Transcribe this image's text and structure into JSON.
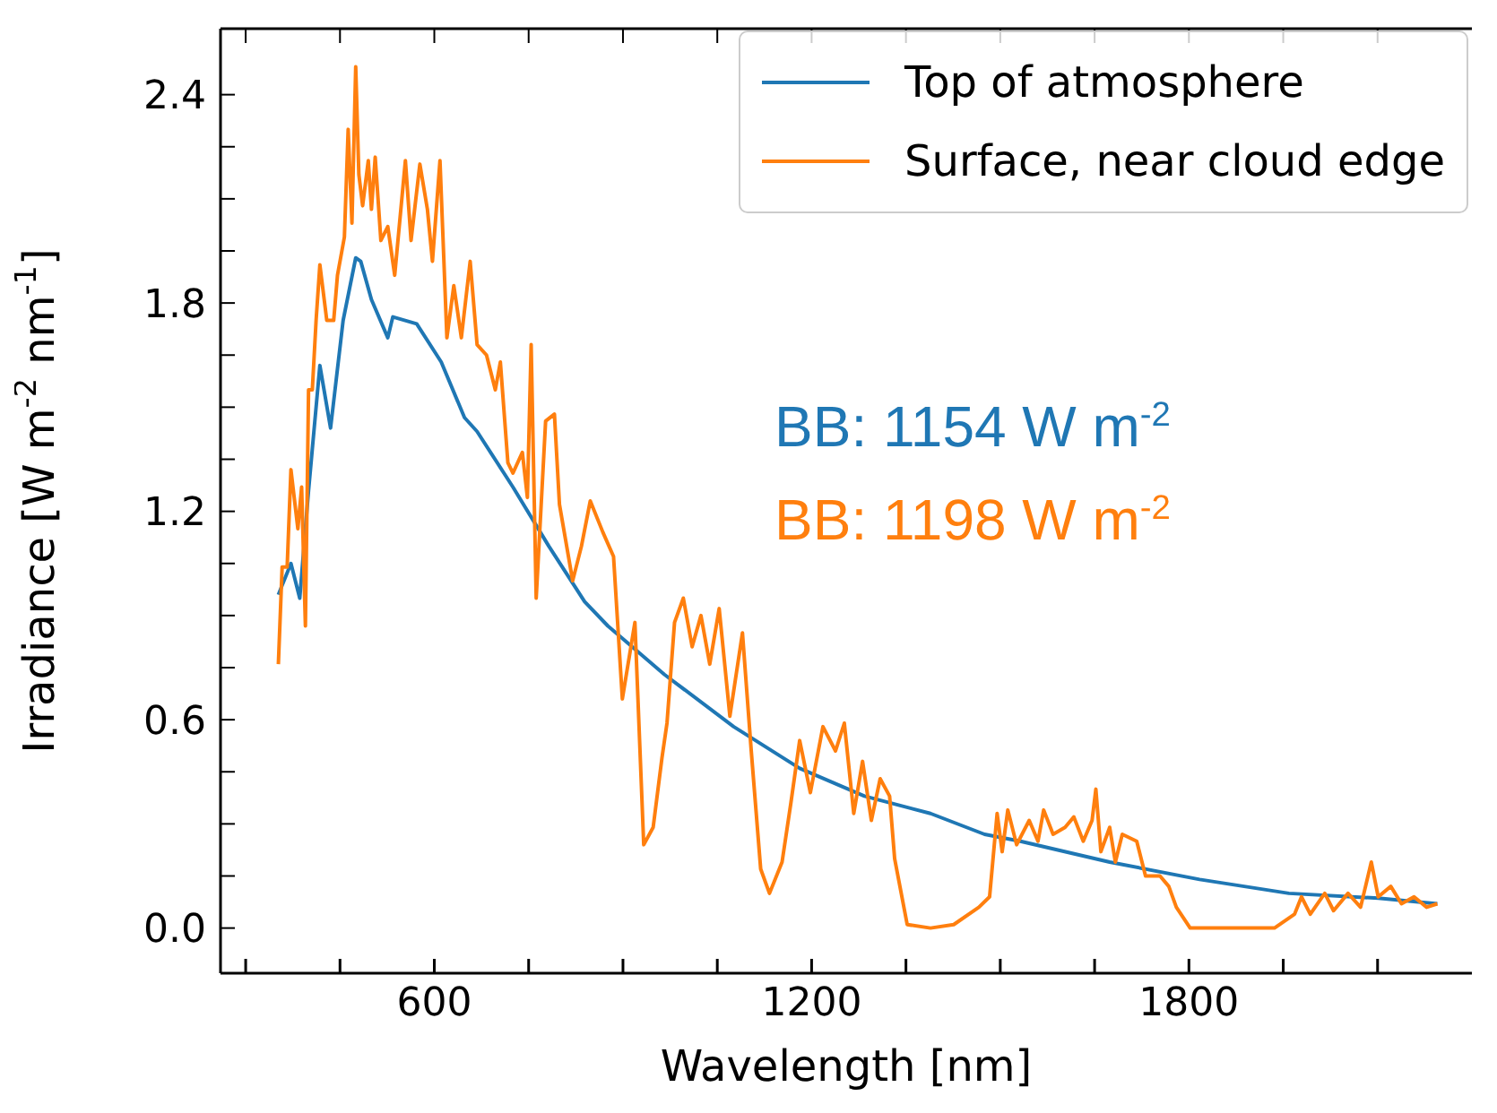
{
  "chart_data": {
    "type": "line",
    "xlabel": "Wavelength [nm]",
    "ylabel": "Irradiance [W m$^{-2}$ nm$^{-1}$]",
    "xlim": [
      260,
      2250
    ],
    "ylim": [
      -0.13,
      2.59
    ],
    "xticks": [
      {
        "value": 300,
        "label": null
      },
      {
        "value": 450,
        "label": null
      },
      600,
      {
        "value": 750,
        "label": null
      },
      {
        "value": 900,
        "label": null
      },
      {
        "value": 1050,
        "label": null
      },
      1200,
      {
        "value": 1350,
        "label": null
      },
      {
        "value": 1500,
        "label": null
      },
      {
        "value": 1650,
        "label": null
      },
      1800,
      {
        "value": 1950,
        "label": null
      },
      {
        "value": 2100,
        "label": null
      }
    ],
    "yticks": [
      {
        "value": 0,
        "label": "0.0"
      },
      {
        "value": 0.15,
        "label": null
      },
      {
        "value": 0.3,
        "label": null
      },
      {
        "value": 0.45,
        "label": null
      },
      0.6,
      {
        "value": 0.75,
        "label": null
      },
      {
        "value": 0.9,
        "label": null
      },
      {
        "value": 1.05,
        "label": null
      },
      1.2,
      {
        "value": 1.35,
        "label": null
      },
      {
        "value": 1.5,
        "label": null
      },
      {
        "value": 1.65,
        "label": null
      },
      1.8,
      {
        "value": 1.95,
        "label": null
      },
      {
        "value": 2.1,
        "label": null
      },
      {
        "value": 2.25,
        "label": null
      },
      2.4
    ],
    "grid": false,
    "legend": "top right",
    "annotations": [
      "BB: 1154 W m$^{-2}$",
      "BB: 1198 W m$^{-2}$"
    ],
    "series": [
      {
        "name": "Top of atmosphere",
        "color": "#1f77b4",
        "x": [
          352,
          372,
          386,
          400,
          418,
          435,
          455,
          475,
          483,
          500,
          526,
          534,
          572,
          611,
          648,
          668,
          725,
          782,
          839,
          876,
          966,
          1076,
          1181,
          1284,
          1389,
          1475,
          1532,
          1674,
          1817,
          1959,
          2101,
          2195
        ],
        "values": [
          0.96,
          1.05,
          0.95,
          1.26,
          1.62,
          1.44,
          1.75,
          1.93,
          1.92,
          1.81,
          1.7,
          1.76,
          1.74,
          1.63,
          1.47,
          1.43,
          1.27,
          1.1,
          0.94,
          0.87,
          0.73,
          0.58,
          0.46,
          0.38,
          0.33,
          0.27,
          0.25,
          0.19,
          0.14,
          0.1,
          0.086,
          0.07
        ]
      },
      {
        "name": "Surface, near cloud edge",
        "color": "#ff7f0e",
        "x": [
          352,
          358,
          366,
          372,
          383,
          389,
          395,
          400,
          406,
          412,
          418,
          429,
          440,
          446,
          457,
          463,
          469,
          475,
          480,
          486,
          495,
          500,
          506,
          515,
          526,
          537,
          554,
          563,
          577,
          589,
          597,
          609,
          620,
          631,
          643,
          657,
          668,
          683,
          697,
          705,
          717,
          725,
          740,
          748,
          754,
          762,
          777,
          791,
          799,
          820,
          834,
          848,
          868,
          885,
          899,
          919,
          933,
          948,
          962,
          970,
          982,
          996,
          1010,
          1024,
          1038,
          1053,
          1070,
          1090,
          1104,
          1119,
          1133,
          1153,
          1167,
          1181,
          1198,
          1218,
          1238,
          1252,
          1267,
          1281,
          1295,
          1309,
          1324,
          1332,
          1352,
          1389,
          1426,
          1466,
          1483,
          1495,
          1503,
          1512,
          1526,
          1546,
          1560,
          1569,
          1584,
          1603,
          1617,
          1632,
          1646,
          1652,
          1660,
          1674,
          1683,
          1694,
          1717,
          1731,
          1754,
          1768,
          1780,
          1802,
          1911,
          1936,
          1968,
          1979,
          1993,
          2016,
          2030,
          2053,
          2073,
          2090,
          2101,
          2121,
          2138,
          2158,
          2178,
          2195
        ],
        "values": [
          0.76,
          1.04,
          1.04,
          1.32,
          1.15,
          1.27,
          0.87,
          1.55,
          1.55,
          1.75,
          1.91,
          1.75,
          1.75,
          1.88,
          1.99,
          2.3,
          2.03,
          2.48,
          2.17,
          2.08,
          2.21,
          2.07,
          2.22,
          1.98,
          2.02,
          1.88,
          2.21,
          1.98,
          2.2,
          2.07,
          1.92,
          2.21,
          1.7,
          1.85,
          1.7,
          1.92,
          1.68,
          1.65,
          1.55,
          1.63,
          1.34,
          1.31,
          1.37,
          1.24,
          1.68,
          0.95,
          1.46,
          1.48,
          1.22,
          1.0,
          1.1,
          1.23,
          1.14,
          1.07,
          0.66,
          0.88,
          0.24,
          0.29,
          0.49,
          0.59,
          0.88,
          0.95,
          0.81,
          0.9,
          0.76,
          0.92,
          0.61,
          0.85,
          0.51,
          0.17,
          0.1,
          0.19,
          0.36,
          0.54,
          0.39,
          0.58,
          0.51,
          0.59,
          0.33,
          0.48,
          0.31,
          0.43,
          0.38,
          0.2,
          0.01,
          0.0,
          0.01,
          0.06,
          0.09,
          0.33,
          0.22,
          0.34,
          0.24,
          0.31,
          0.25,
          0.34,
          0.27,
          0.29,
          0.32,
          0.25,
          0.31,
          0.4,
          0.22,
          0.29,
          0.19,
          0.27,
          0.25,
          0.15,
          0.15,
          0.12,
          0.06,
          0.0,
          0.0,
          0.0,
          0.04,
          0.09,
          0.04,
          0.1,
          0.05,
          0.1,
          0.06,
          0.19,
          0.09,
          0.12,
          0.07,
          0.09,
          0.06,
          0.07
        ]
      }
    ]
  }
}
